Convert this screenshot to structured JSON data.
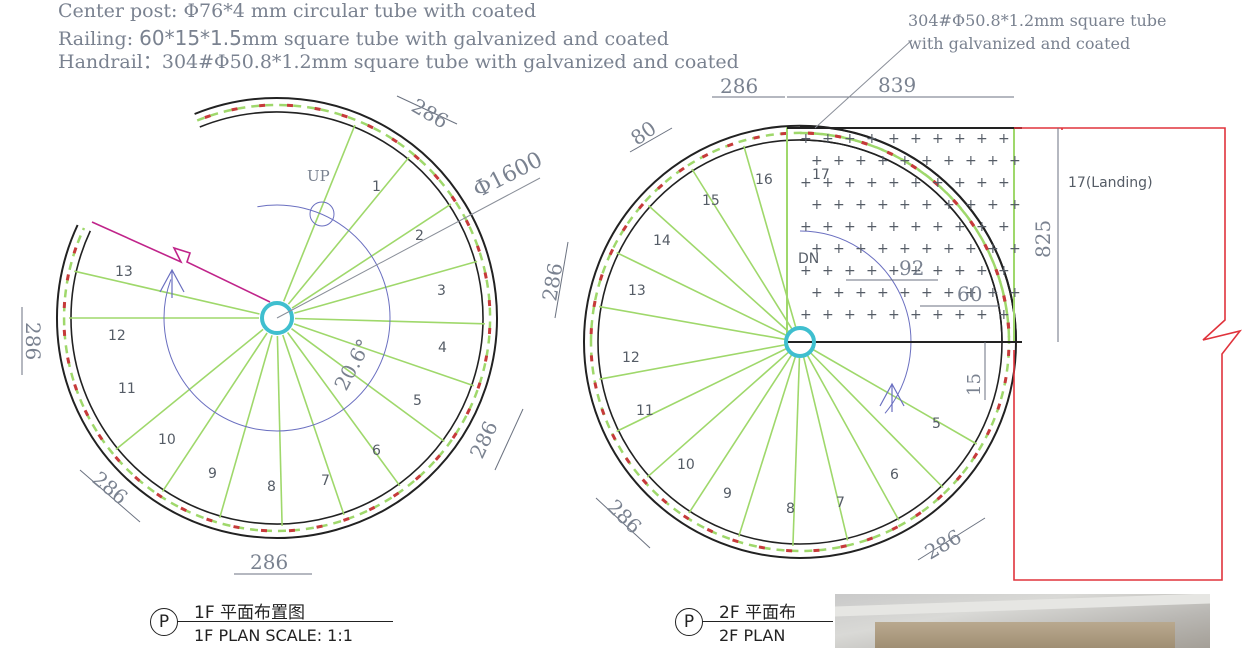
{
  "specs": {
    "center_post": "Center post: Φ76*4 mm circular tube with coated",
    "railing_prefix": "Railing: ",
    "railing_size": "60*15*1.5",
    "railing_suffix": "mm square tube with galvanized and coated",
    "handrail": "Handrail：304#Φ50.8*1.2mm square tube with galvanized and coated"
  },
  "callout": {
    "line1": "304#Φ50.8*1.2mm square tube",
    "line2": "with galvanized and coated"
  },
  "plan_1f": {
    "up_label": "UP",
    "diameter_label": "Φ1600",
    "angle_label": "20.6°",
    "steps": [
      "1",
      "2",
      "3",
      "4",
      "5",
      "6",
      "7",
      "8",
      "9",
      "10",
      "11",
      "12",
      "13"
    ],
    "dims": {
      "top_arc": "286",
      "left": "286",
      "right": "286",
      "bottom_left": "286",
      "bottom": "286"
    },
    "caption": {
      "symbol": "P",
      "line1": "1F  平面布置图",
      "line2": "1F PLAN SCALE: 1:1"
    }
  },
  "plan_2f": {
    "dn_label": "DN",
    "landing_label": "17(Landing)",
    "steps": [
      "5",
      "6",
      "7",
      "8",
      "9",
      "10",
      "11",
      "12",
      "13",
      "14",
      "15",
      "16",
      "17"
    ],
    "dims": {
      "top_left": "286",
      "top_width": "839",
      "tread_width": "80",
      "left": "286",
      "landing_depth": "825",
      "grid_x": "92",
      "grid_y": "60",
      "post_gap": "15",
      "bottom_left": "286",
      "bottom_right": "286"
    },
    "caption": {
      "symbol": "P",
      "line1": "2F  平面布",
      "line2": "2F PLAN"
    }
  },
  "colors": {
    "tread_line": "#9fd86b",
    "rail": "#222222",
    "center_post": "#3fbfcf",
    "landing_outline": "#e0333c",
    "arrow_line": "#c0248a",
    "dim_line": "#6b7280"
  }
}
